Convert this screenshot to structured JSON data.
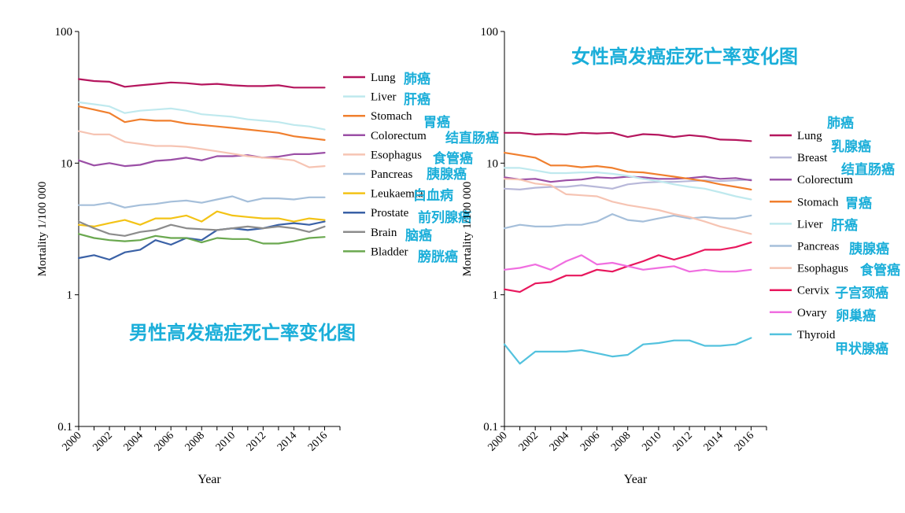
{
  "chart_data": [
    {
      "type": "line",
      "title": "男性高发癌症死亡率变化图",
      "xlabel": "Year",
      "ylabel": "Mortality 1/100 000",
      "yscale": "log",
      "ylim": [
        0.1,
        100
      ],
      "xlim": [
        2000,
        2017
      ],
      "yticks": [
        "0.1",
        "1",
        "10",
        "100"
      ],
      "xticks": [
        "2000",
        "2002",
        "2004",
        "2006",
        "2008",
        "2010",
        "2012",
        "2014",
        "2016"
      ],
      "legend": "right",
      "grid": false,
      "x": [
        2000,
        2001,
        2002,
        2003,
        2004,
        2005,
        2006,
        2007,
        2008,
        2009,
        2010,
        2011,
        2012,
        2013,
        2014,
        2015,
        2016
      ],
      "series": [
        {
          "name": "Lung",
          "cn": "肺癌",
          "color": "#b5165e",
          "values": [
            43.5,
            42,
            41.5,
            38,
            39,
            40,
            41,
            40.5,
            39.5,
            40,
            39,
            38.5,
            38.5,
            39,
            37.5,
            37.5,
            37.5
          ]
        },
        {
          "name": "Liver",
          "cn": "肝癌",
          "color": "#bfe9ee",
          "values": [
            29,
            28,
            27,
            24,
            25,
            25.5,
            26,
            25,
            23.5,
            23,
            22.5,
            21.5,
            21,
            20.5,
            19.5,
            19,
            18
          ]
        },
        {
          "name": "Stomach",
          "cn": "胃癌",
          "color": "#f07f2e",
          "values": [
            27,
            25.5,
            24,
            20.5,
            21.5,
            21,
            21,
            20,
            19.5,
            19,
            18.5,
            18,
            17.5,
            17,
            16,
            15.5,
            15
          ]
        },
        {
          "name": "Colorectum",
          "cn": "结直肠癌",
          "color": "#9b4fa6",
          "values": [
            10.5,
            9.6,
            10,
            9.5,
            9.7,
            10.4,
            10.6,
            11,
            10.5,
            11.3,
            11.3,
            11.5,
            11,
            11.2,
            11.7,
            11.7,
            12
          ]
        },
        {
          "name": "Esophagus",
          "cn": "食管癌",
          "color": "#f6c4b3",
          "values": [
            17.5,
            16.5,
            16.5,
            14.5,
            14,
            13.5,
            13.5,
            13.3,
            12.8,
            12.3,
            11.8,
            11.3,
            11,
            10.8,
            10.5,
            9.3,
            9.5
          ]
        },
        {
          "name": "Pancreas",
          "cn": "胰腺癌",
          "color": "#a5bfda",
          "values": [
            4.8,
            4.8,
            5,
            4.6,
            4.8,
            4.9,
            5.1,
            5.2,
            5,
            5.3,
            5.6,
            5.1,
            5.4,
            5.4,
            5.3,
            5.5,
            5.5
          ]
        },
        {
          "name": "Leukaemia",
          "cn": "白血病",
          "color": "#f3c316",
          "values": [
            3.4,
            3.3,
            3.5,
            3.7,
            3.4,
            3.8,
            3.8,
            4,
            3.6,
            4.3,
            4,
            3.9,
            3.8,
            3.8,
            3.6,
            3.8,
            3.7
          ]
        },
        {
          "name": "Prostate",
          "cn": "前列腺癌",
          "color": "#3a61a6",
          "values": [
            1.9,
            2,
            1.85,
            2.1,
            2.2,
            2.6,
            2.4,
            2.7,
            2.6,
            3.1,
            3.2,
            3.1,
            3.2,
            3.4,
            3.5,
            3.4,
            3.6
          ]
        },
        {
          "name": "Brain",
          "cn": "脑癌",
          "color": "#8c8c8c",
          "values": [
            3.6,
            3.2,
            2.9,
            2.8,
            3,
            3.1,
            3.4,
            3.2,
            3.15,
            3.1,
            3.2,
            3.3,
            3.2,
            3.3,
            3.2,
            3,
            3.3
          ]
        },
        {
          "name": "Bladder",
          "cn": "膀胱癌",
          "color": "#6aa84f",
          "values": [
            2.9,
            2.7,
            2.6,
            2.55,
            2.6,
            2.8,
            2.7,
            2.7,
            2.5,
            2.7,
            2.65,
            2.65,
            2.45,
            2.45,
            2.55,
            2.7,
            2.75
          ]
        }
      ]
    },
    {
      "type": "line",
      "title": "女性高发癌症死亡率变化图",
      "xlabel": "Year",
      "ylabel": "Mortality 1/100 000",
      "yscale": "log",
      "ylim": [
        0.1,
        100
      ],
      "xlim": [
        2000,
        2017
      ],
      "yticks": [
        "0.1",
        "1",
        "10",
        "100"
      ],
      "xticks": [
        "2000",
        "2002",
        "2004",
        "2006",
        "2008",
        "2010",
        "2012",
        "2014",
        "2016"
      ],
      "legend": "right",
      "grid": false,
      "x": [
        2000,
        2001,
        2002,
        2003,
        2004,
        2005,
        2006,
        2007,
        2008,
        2009,
        2010,
        2011,
        2012,
        2013,
        2014,
        2015,
        2016
      ],
      "series": [
        {
          "name": "Lung",
          "cn": "肺癌",
          "color": "#b5165e",
          "values": [
            17,
            17,
            16.5,
            16.7,
            16.5,
            17,
            16.8,
            17,
            15.8,
            16.6,
            16.4,
            15.8,
            16.3,
            15.9,
            15.1,
            15,
            14.7
          ]
        },
        {
          "name": "Breast",
          "cn": "乳腺癌",
          "color": "#b8b8d9",
          "values": [
            6.4,
            6.3,
            6.5,
            6.6,
            6.6,
            6.8,
            6.6,
            6.4,
            6.9,
            7.1,
            7.2,
            7.2,
            7.3,
            7.4,
            7.3,
            7.4,
            7.5
          ]
        },
        {
          "name": "Colorectum",
          "cn": "结直肠癌",
          "color": "#9b4fa6",
          "values": [
            7.8,
            7.5,
            7.6,
            7.2,
            7.4,
            7.5,
            7.8,
            7.7,
            7.9,
            7.8,
            7.6,
            7.6,
            7.7,
            7.9,
            7.6,
            7.7,
            7.4
          ]
        },
        {
          "name": "Stomach",
          "cn": "胃癌",
          "color": "#f07f2e",
          "values": [
            12,
            11.5,
            11,
            9.6,
            9.6,
            9.3,
            9.5,
            9.2,
            8.6,
            8.5,
            8.2,
            7.9,
            7.6,
            7.3,
            6.9,
            6.6,
            6.3
          ]
        },
        {
          "name": "Liver",
          "cn": "肝癌",
          "color": "#bfe9ee",
          "values": [
            9.2,
            9.2,
            8.8,
            8.4,
            8.4,
            8.5,
            8.5,
            8.3,
            8,
            7.6,
            7.3,
            6.9,
            6.6,
            6.4,
            6,
            5.6,
            5.3
          ]
        },
        {
          "name": "Pancreas",
          "cn": "胰腺癌",
          "color": "#a5bfda",
          "values": [
            3.2,
            3.4,
            3.3,
            3.3,
            3.4,
            3.4,
            3.6,
            4.1,
            3.7,
            3.6,
            3.8,
            4,
            3.8,
            3.9,
            3.8,
            3.8,
            4
          ]
        },
        {
          "name": "Esophagus",
          "cn": "食管癌",
          "color": "#f6c4b3",
          "values": [
            7.6,
            7.5,
            7,
            6.8,
            5.8,
            5.7,
            5.6,
            5.1,
            4.8,
            4.6,
            4.4,
            4.1,
            3.9,
            3.6,
            3.3,
            3.1,
            2.9
          ]
        },
        {
          "name": "Cervix",
          "cn": "子宫颈癌",
          "color": "#e8175d",
          "values": [
            1.1,
            1.05,
            1.22,
            1.25,
            1.4,
            1.4,
            1.55,
            1.5,
            1.65,
            1.8,
            2,
            1.85,
            2,
            2.2,
            2.2,
            2.3,
            2.5
          ]
        },
        {
          "name": "Ovary",
          "cn": "卵巢癌",
          "color": "#f06ee0",
          "values": [
            1.55,
            1.6,
            1.7,
            1.55,
            1.8,
            2,
            1.7,
            1.75,
            1.65,
            1.55,
            1.6,
            1.65,
            1.5,
            1.55,
            1.5,
            1.5,
            1.55
          ]
        },
        {
          "name": "Thyroid",
          "cn": "甲状腺癌",
          "color": "#53c2de",
          "values": [
            0.42,
            0.3,
            0.37,
            0.37,
            0.37,
            0.38,
            0.36,
            0.34,
            0.35,
            0.42,
            0.43,
            0.45,
            0.45,
            0.41,
            0.41,
            0.42,
            0.47
          ]
        }
      ]
    }
  ]
}
